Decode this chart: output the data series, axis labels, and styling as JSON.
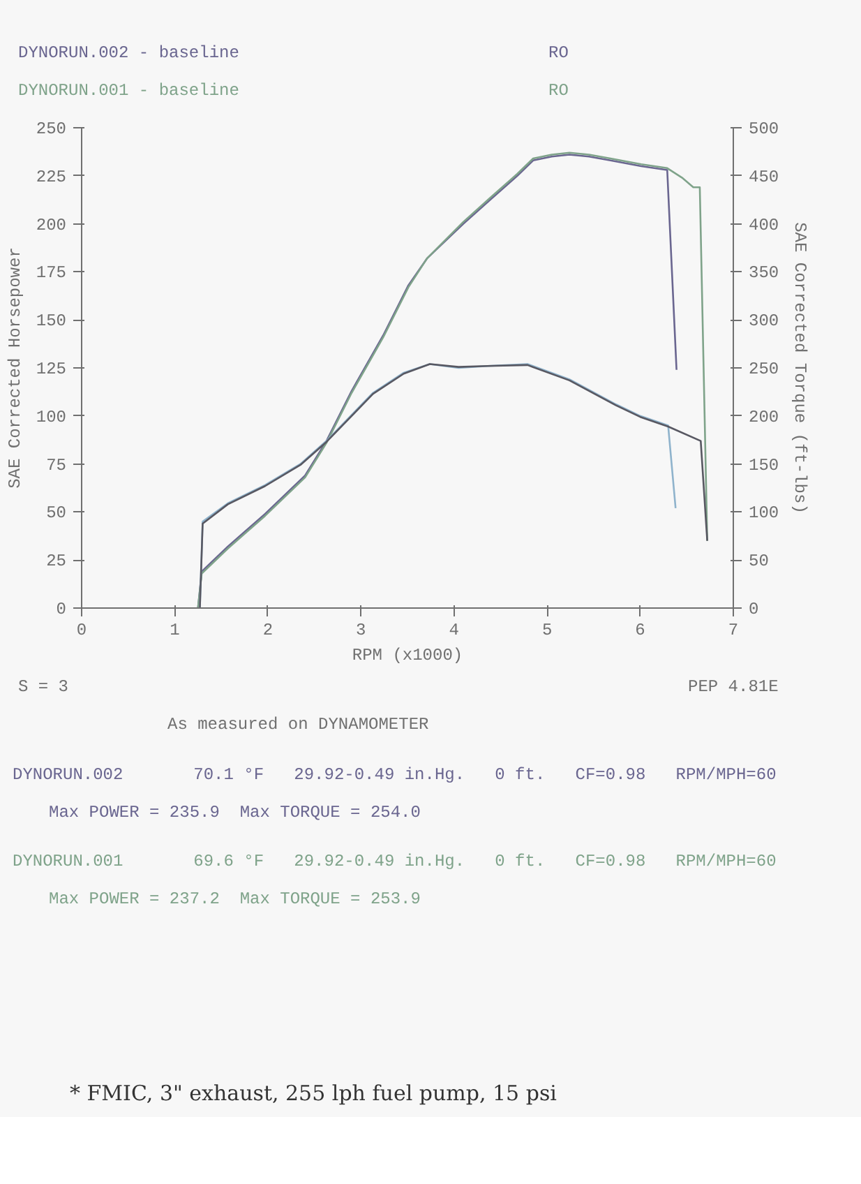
{
  "chart_data": {
    "type": "line",
    "xlabel": "RPM (x1000)",
    "ylabel": "SAE Corrected Horsepower",
    "y2label": "SAE Corrected Torque (ft-lbs)",
    "xlim": [
      0,
      7
    ],
    "xticks": [
      0,
      1,
      2,
      3,
      4,
      5,
      6,
      7
    ],
    "ylim": [
      0,
      250
    ],
    "yticks": [
      0,
      25,
      50,
      75,
      100,
      125,
      150,
      175,
      200,
      225,
      250
    ],
    "y2lim": [
      0,
      500
    ],
    "y2ticks": [
      0,
      50,
      100,
      150,
      200,
      250,
      300,
      350,
      400,
      450,
      500
    ],
    "grid": false,
    "marker": "none",
    "line_style": "solid",
    "series": [
      {
        "color": "#6a6690",
        "x": [
          1.25,
          1.29,
          1.57,
          1.97,
          2.4,
          2.63,
          2.9,
          3.24,
          3.51,
          3.71,
          4.1,
          4.4,
          4.68,
          4.85,
          5.05,
          5.24,
          5.45,
          5.68,
          6.01,
          6.29,
          6.39
        ],
        "values": [
          0,
          19,
          32,
          49,
          69,
          87,
          113,
          142,
          168,
          182,
          200,
          213,
          225,
          233,
          235,
          236,
          235,
          233,
          230,
          228,
          124
        ]
      },
      {
        "color": "#7fa38a",
        "x": [
          1.25,
          1.29,
          1.57,
          1.97,
          2.4,
          2.63,
          2.9,
          3.24,
          3.51,
          3.71,
          4.1,
          4.4,
          4.68,
          4.85,
          5.05,
          5.24,
          5.45,
          5.68,
          6.01,
          6.29,
          6.45,
          6.57,
          6.64,
          6.72
        ],
        "values": [
          0,
          18,
          31,
          48,
          68,
          86,
          112,
          141,
          167,
          182,
          201,
          214,
          226,
          234,
          236,
          237,
          236,
          234,
          231,
          229,
          224,
          219,
          219,
          35
        ]
      },
      {
        "color": "#8fb3cc",
        "axis": "y2",
        "x": [
          1.27,
          1.3,
          1.57,
          1.97,
          2.35,
          2.63,
          3.13,
          3.46,
          3.74,
          4.05,
          4.36,
          4.79,
          5.24,
          5.74,
          6.0,
          6.3,
          6.38
        ],
        "values": [
          0,
          90,
          109,
          128,
          150,
          174,
          224,
          245,
          254,
          250,
          252,
          254,
          238,
          212,
          200,
          190,
          104
        ]
      },
      {
        "color": "#585862",
        "axis": "y2",
        "x": [
          1.27,
          1.3,
          1.57,
          1.97,
          2.35,
          2.63,
          3.13,
          3.46,
          3.74,
          4.05,
          4.36,
          4.79,
          5.24,
          5.74,
          6.0,
          6.3,
          6.65,
          6.72
        ],
        "values": [
          0,
          88,
          108,
          127,
          149,
          173,
          223,
          244,
          254,
          251,
          252,
          253,
          237,
          211,
          199,
          189,
          174,
          70
        ]
      }
    ],
    "annotations": [
      "DYNORUN.002 - baseline",
      "DYNORUN.001 - baseline",
      "RO",
      "RO",
      "S = 3",
      "PEP 4.81E",
      "As measured on DYNAMOMETER",
      "DYNORUN.002       70.1 °F   29.92-0.49 in.Hg.   0 ft.   CF=0.98   RPM/MPH=60",
      "Max POWER = 235.9  Max TORQUE = 254.0",
      "DYNORUN.001       69.6 °F   29.92-0.49 in.Hg.   0 ft.   CF=0.98   RPM/MPH=60",
      "Max POWER = 237.2  Max TORQUE = 253.9",
      "* FMIC, 3\" exhaust, 255 lph fuel pump, 15 psi"
    ]
  }
}
